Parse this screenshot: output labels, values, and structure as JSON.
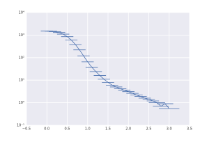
{
  "chart_data": {
    "type": "errorbar",
    "color": "#4c72b0",
    "grid": true,
    "yscale": "log",
    "x": [
      0.0,
      0.1,
      0.2,
      0.3,
      0.4,
      0.5,
      0.6,
      0.7,
      0.8,
      0.9,
      1.0,
      1.1,
      1.2,
      1.3,
      1.4,
      1.5,
      1.6,
      1.7,
      1.8,
      1.9,
      2.0,
      2.1,
      2.2,
      2.3,
      2.4,
      2.5,
      2.6,
      2.7,
      2.8,
      2.9,
      3.0
    ],
    "series": [
      {
        "values": [
          1500,
          1480,
          1420,
          1300,
          1100,
          850,
          600,
          380,
          220,
          120,
          65,
          38,
          24,
          16,
          11,
          8,
          6,
          5,
          4.2,
          3.6,
          3.1,
          2.6,
          2.2,
          1.9,
          1.6,
          1.4,
          1.2,
          1.0,
          0.7,
          0.9,
          0.55
        ],
        "xerr": [
          0.15,
          0.15,
          0.15,
          0.15,
          0.15,
          0.15,
          0.15,
          0.15,
          0.15,
          0.15,
          0.15,
          0.15,
          0.15,
          0.15,
          0.15,
          0.15,
          0.15,
          0.15,
          0.15,
          0.15,
          0.15,
          0.15,
          0.15,
          0.15,
          0.15,
          0.15,
          0.15,
          0.2,
          0.2,
          0.2,
          0.25
        ]
      }
    ],
    "xlim": [
      -0.5,
      3.5
    ],
    "xticks": [
      {
        "value": -0.5,
        "label": "−0.5"
      },
      {
        "value": 0,
        "label": "0.0"
      },
      0.5,
      {
        "value": 1,
        "label": "1.0"
      },
      1.5,
      {
        "value": 2,
        "label": "2.0"
      },
      2.5,
      {
        "value": 3,
        "label": "3.0"
      },
      3.5
    ],
    "ylim": [
      0.1,
      10000
    ],
    "yticks": [
      {
        "value": 0.1,
        "label": "10⁻¹"
      },
      {
        "value": 1,
        "label": "10⁰"
      },
      {
        "value": 10,
        "label": "10¹"
      },
      {
        "value": 100,
        "label": "10²"
      },
      {
        "value": 1000,
        "label": "10³"
      },
      {
        "value": 10000,
        "label": "10⁴"
      }
    ]
  }
}
